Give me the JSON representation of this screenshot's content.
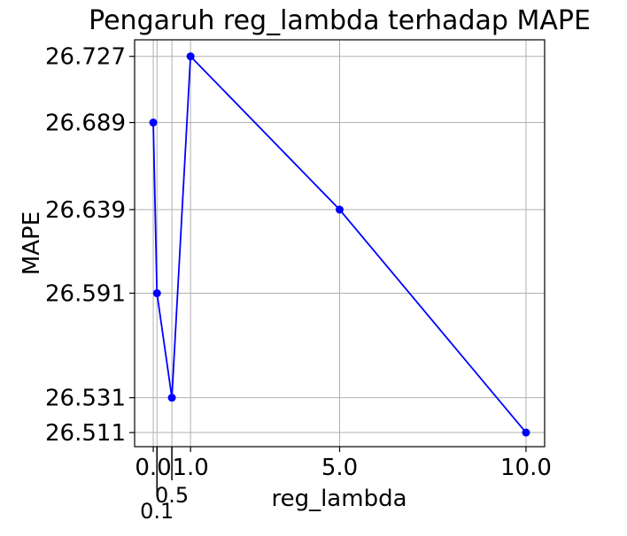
{
  "chart_data": {
    "type": "line",
    "title": "Pengaruh reg_lambda terhadap MAPE",
    "xlabel": "reg_lambda",
    "ylabel": "MAPE",
    "xlim": [
      -0.5,
      10.5
    ],
    "ylim": [
      26.5029,
      26.7365
    ],
    "grid": true,
    "x_ticks": [
      {
        "value": 0.0,
        "label": "0.0"
      },
      {
        "value": 0.1,
        "label": "0.1",
        "offset_label": true
      },
      {
        "value": 0.5,
        "label": "0.5",
        "offset_label": true
      },
      {
        "value": 1.0,
        "label": "1.0"
      },
      {
        "value": 5.0,
        "label": "5.0"
      },
      {
        "value": 10.0,
        "label": "10.0"
      }
    ],
    "y_ticks": [
      {
        "value": 26.511,
        "label": "26.511"
      },
      {
        "value": 26.531,
        "label": "26.531"
      },
      {
        "value": 26.591,
        "label": "26.591"
      },
      {
        "value": 26.639,
        "label": "26.639"
      },
      {
        "value": 26.689,
        "label": "26.689"
      },
      {
        "value": 26.727,
        "label": "26.727"
      }
    ],
    "series": [
      {
        "color": "#0000ff",
        "marker": "circle",
        "points": [
          {
            "x": 0.0,
            "y": 26.689
          },
          {
            "x": 0.1,
            "y": 26.591
          },
          {
            "x": 0.5,
            "y": 26.531
          },
          {
            "x": 1.0,
            "y": 26.727
          },
          {
            "x": 5.0,
            "y": 26.639
          },
          {
            "x": 10.0,
            "y": 26.511
          }
        ]
      }
    ]
  }
}
